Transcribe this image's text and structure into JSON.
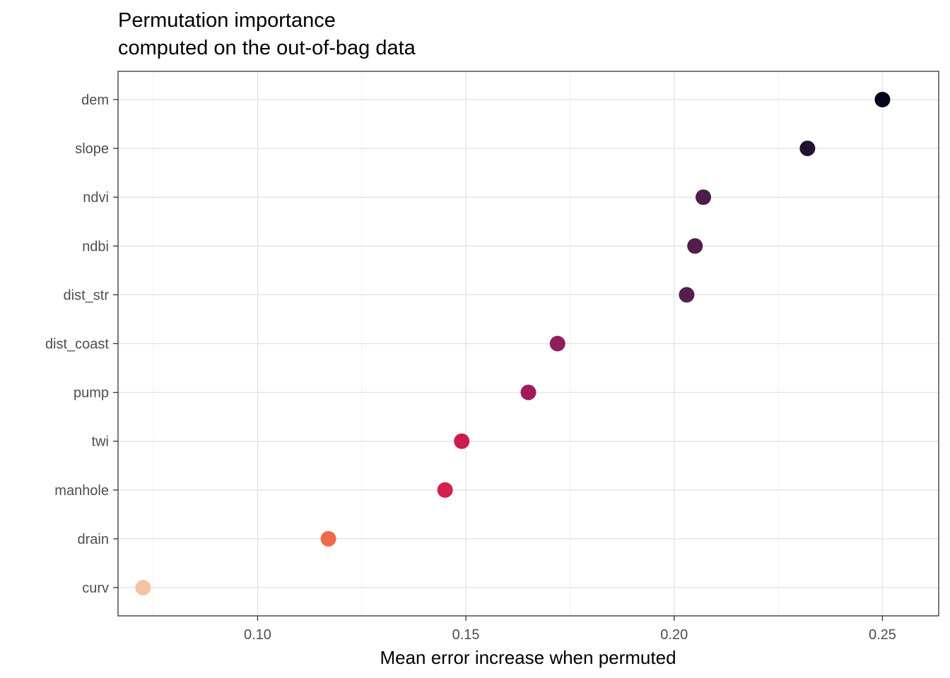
{
  "chart_data": {
    "type": "scatter",
    "title": "Permutation importance",
    "subtitle": "computed on the out-of-bag data",
    "xlabel": "Mean error increase when permuted",
    "ylabel": "",
    "xlim": [
      0.0665,
      0.2635
    ],
    "x_major_ticks": [
      0.1,
      0.15,
      0.2,
      0.25
    ],
    "x_tick_labels": [
      "0.10",
      "0.15",
      "0.20",
      "0.25"
    ],
    "grid": true,
    "legend": "none",
    "categories": [
      "dem",
      "slope",
      "ndvi",
      "ndbi",
      "dist_str",
      "dist_coast",
      "pump",
      "twi",
      "manhole",
      "drain",
      "curv"
    ],
    "values": [
      0.25,
      0.232,
      0.207,
      0.205,
      0.203,
      0.172,
      0.165,
      0.149,
      0.145,
      0.117,
      0.0725
    ],
    "colors": [
      "#03051a",
      "#221331",
      "#4c1d4b",
      "#501d4c",
      "#541e4e",
      "#8f1c5b",
      "#a11a5b",
      "#cb1b4f",
      "#d4204a",
      "#ee6a4f",
      "#f6c1a5"
    ]
  }
}
